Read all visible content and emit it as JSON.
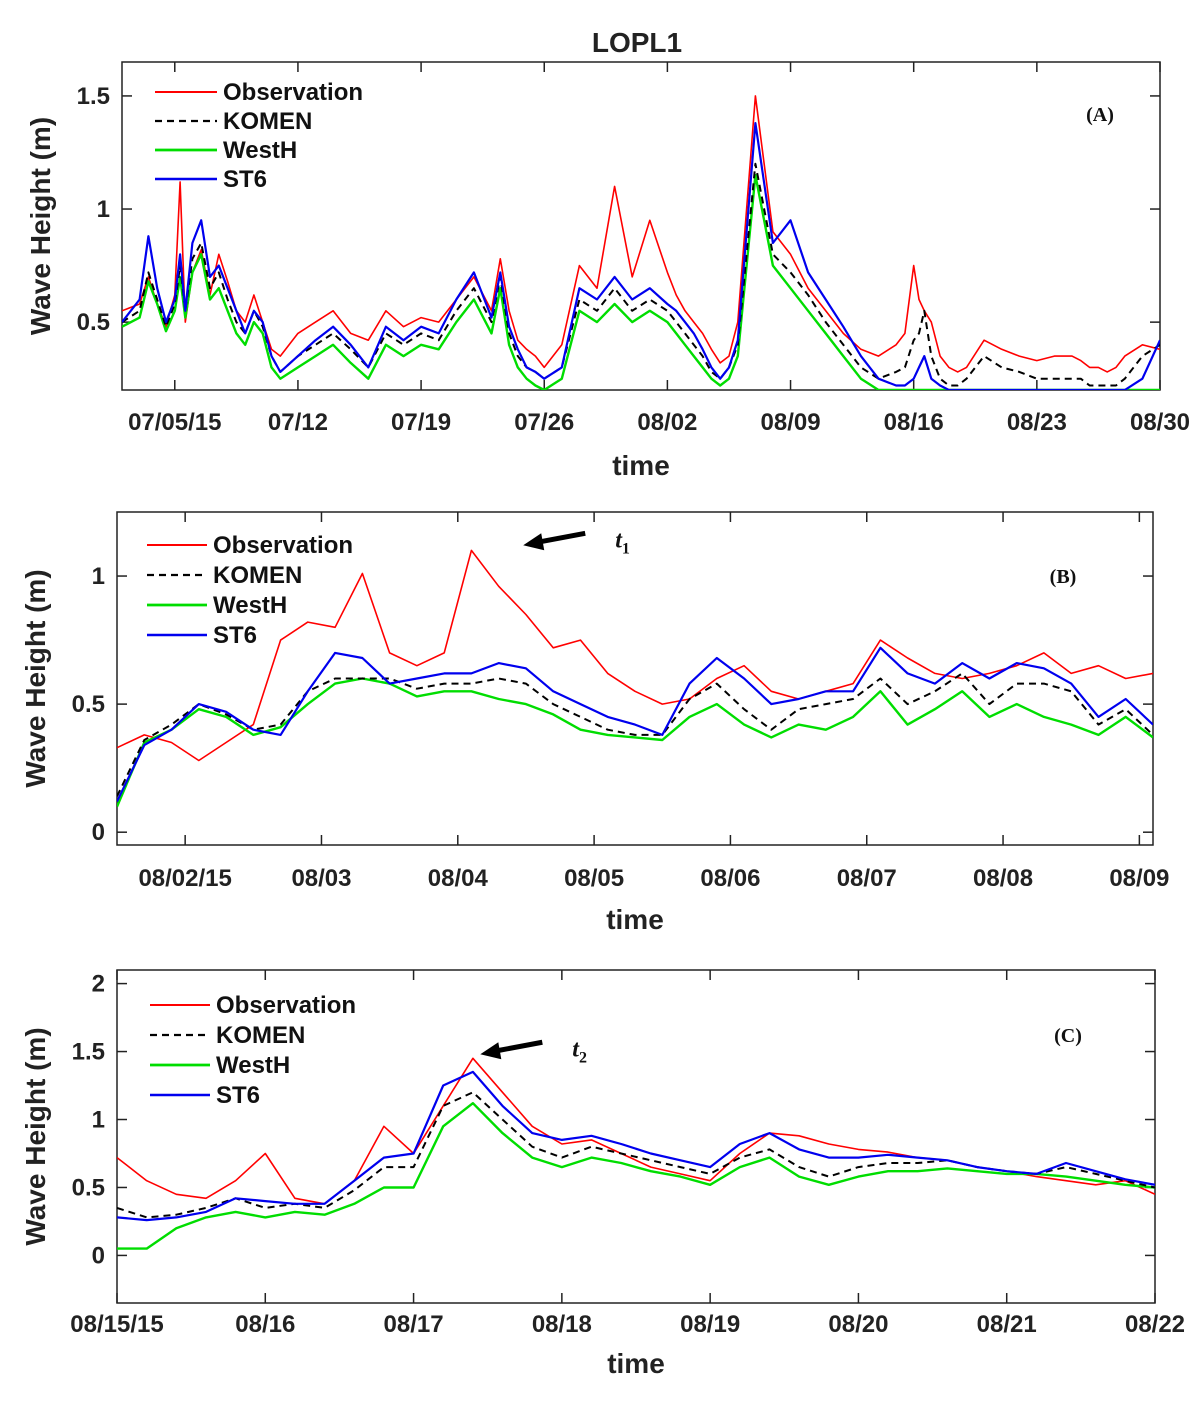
{
  "figure_title": "LOPL1",
  "colors": {
    "observation": "#ff0000",
    "komen": "#000000",
    "westh": "#00dd00",
    "st6": "#0000ee"
  },
  "chart_data": [
    {
      "type": "line",
      "panel": "(A)",
      "title": "LOPL1",
      "xlabel": "time",
      "ylabel": "Wave Height (m)",
      "ylim": [
        0.2,
        1.65
      ],
      "yticks": [
        0.5,
        1,
        1.5
      ],
      "yticklabels": [
        "0.5",
        "1",
        "1.5"
      ],
      "xlim": [
        0,
        59
      ],
      "xtick_positions": [
        3,
        10,
        17,
        24,
        31,
        38,
        45,
        52,
        59
      ],
      "xticklabels": [
        "07/05/15",
        "07/12",
        "07/19",
        "07/26",
        "08/02",
        "08/09",
        "08/16",
        "08/23",
        "08/30"
      ],
      "x": [
        0,
        1,
        1.5,
        2,
        2.5,
        3,
        3.3,
        3.6,
        4,
        4.5,
        5,
        5.5,
        6,
        6.5,
        7,
        7.5,
        8,
        8.5,
        9,
        10,
        11,
        12,
        13,
        14,
        15,
        16,
        17,
        18,
        19,
        20,
        21,
        21.5,
        22,
        22.5,
        23,
        23.5,
        24,
        25,
        26,
        27,
        28,
        29,
        30,
        31,
        31.5,
        32,
        32.5,
        33,
        33.5,
        34,
        34.5,
        35,
        36,
        37,
        38,
        39,
        40,
        41,
        42,
        43,
        44,
        44.5,
        45,
        45.3,
        45.6,
        46,
        46.5,
        47,
        47.5,
        48,
        49,
        50,
        51,
        52,
        53,
        54,
        54.5,
        55,
        55.5,
        56,
        56.5,
        57,
        58,
        59
      ],
      "series": [
        {
          "name": "Observation",
          "values": [
            0.55,
            0.58,
            0.7,
            0.58,
            0.48,
            0.62,
            1.12,
            0.5,
            0.72,
            0.82,
            0.62,
            0.8,
            0.68,
            0.55,
            0.5,
            0.62,
            0.5,
            0.38,
            0.35,
            0.45,
            0.5,
            0.55,
            0.45,
            0.42,
            0.55,
            0.48,
            0.52,
            0.5,
            0.6,
            0.7,
            0.55,
            0.78,
            0.55,
            0.42,
            0.38,
            0.35,
            0.3,
            0.4,
            0.75,
            0.65,
            1.1,
            0.7,
            0.95,
            0.72,
            0.62,
            0.55,
            0.5,
            0.45,
            0.38,
            0.32,
            0.35,
            0.5,
            1.5,
            0.9,
            0.8,
            0.65,
            0.55,
            0.45,
            0.38,
            0.35,
            0.4,
            0.45,
            0.75,
            0.6,
            0.55,
            0.5,
            0.35,
            0.3,
            0.28,
            0.3,
            0.42,
            0.38,
            0.35,
            0.33,
            0.35,
            0.35,
            0.33,
            0.3,
            0.3,
            0.28,
            0.3,
            0.35,
            0.4,
            0.38
          ]
        },
        {
          "name": "KOMEN",
          "values": [
            0.5,
            0.55,
            0.72,
            0.6,
            0.48,
            0.58,
            0.75,
            0.55,
            0.78,
            0.85,
            0.65,
            0.72,
            0.6,
            0.5,
            0.45,
            0.55,
            0.48,
            0.35,
            0.28,
            0.35,
            0.4,
            0.45,
            0.38,
            0.3,
            0.45,
            0.4,
            0.45,
            0.42,
            0.55,
            0.65,
            0.5,
            0.7,
            0.45,
            0.35,
            0.3,
            0.28,
            0.25,
            0.3,
            0.6,
            0.55,
            0.65,
            0.55,
            0.6,
            0.55,
            0.5,
            0.45,
            0.4,
            0.35,
            0.28,
            0.25,
            0.3,
            0.4,
            1.2,
            0.8,
            0.72,
            0.62,
            0.5,
            0.4,
            0.3,
            0.25,
            0.28,
            0.3,
            0.42,
            0.45,
            0.55,
            0.35,
            0.25,
            0.22,
            0.22,
            0.25,
            0.35,
            0.3,
            0.28,
            0.25,
            0.25,
            0.25,
            0.25,
            0.22,
            0.22,
            0.22,
            0.22,
            0.25,
            0.35,
            0.4
          ]
        },
        {
          "name": "WestH",
          "values": [
            0.48,
            0.52,
            0.68,
            0.58,
            0.46,
            0.55,
            0.7,
            0.52,
            0.72,
            0.8,
            0.6,
            0.65,
            0.55,
            0.45,
            0.4,
            0.5,
            0.45,
            0.3,
            0.25,
            0.3,
            0.35,
            0.4,
            0.32,
            0.25,
            0.4,
            0.35,
            0.4,
            0.38,
            0.5,
            0.6,
            0.45,
            0.65,
            0.4,
            0.3,
            0.25,
            0.22,
            0.2,
            0.25,
            0.55,
            0.5,
            0.58,
            0.5,
            0.55,
            0.5,
            0.45,
            0.4,
            0.35,
            0.3,
            0.25,
            0.22,
            0.25,
            0.35,
            1.15,
            0.75,
            0.65,
            0.55,
            0.45,
            0.35,
            0.25,
            0.2,
            0.2,
            0.2,
            0.2,
            0.2,
            0.2,
            0.2,
            0.2,
            0.2,
            0.2,
            0.2,
            0.2,
            0.2,
            0.2,
            0.2,
            0.2,
            0.2,
            0.2,
            0.2,
            0.2,
            0.2,
            0.2,
            0.2,
            0.2,
            0.2
          ]
        },
        {
          "name": "ST6",
          "values": [
            0.5,
            0.6,
            0.88,
            0.65,
            0.5,
            0.6,
            0.8,
            0.55,
            0.85,
            0.95,
            0.7,
            0.75,
            0.65,
            0.55,
            0.45,
            0.55,
            0.5,
            0.35,
            0.28,
            0.35,
            0.42,
            0.48,
            0.4,
            0.3,
            0.48,
            0.42,
            0.48,
            0.45,
            0.6,
            0.72,
            0.52,
            0.72,
            0.48,
            0.38,
            0.3,
            0.28,
            0.25,
            0.3,
            0.65,
            0.6,
            0.7,
            0.6,
            0.65,
            0.58,
            0.55,
            0.5,
            0.45,
            0.38,
            0.3,
            0.25,
            0.3,
            0.42,
            1.38,
            0.85,
            0.95,
            0.72,
            0.6,
            0.48,
            0.35,
            0.25,
            0.22,
            0.22,
            0.25,
            0.3,
            0.35,
            0.25,
            0.22,
            0.2,
            0.2,
            0.2,
            0.2,
            0.2,
            0.2,
            0.2,
            0.2,
            0.2,
            0.2,
            0.2,
            0.2,
            0.2,
            0.2,
            0.2,
            0.25,
            0.42
          ]
        }
      ]
    },
    {
      "type": "line",
      "panel": "(B)",
      "xlabel": "time",
      "ylabel": "Wave Height (m)",
      "ylim": [
        -0.05,
        1.25
      ],
      "yticks": [
        0,
        0.5,
        1
      ],
      "yticklabels": [
        "0",
        "0.5",
        "1"
      ],
      "xlim": [
        0,
        7.6
      ],
      "xtick_positions": [
        0.5,
        1.5,
        2.5,
        3.5,
        4.5,
        5.5,
        6.5,
        7.5
      ],
      "xticklabels": [
        "08/02/15",
        "08/03",
        "08/04",
        "08/05",
        "08/06",
        "08/07",
        "08/08",
        "08/09"
      ],
      "annotation": {
        "text": "t1",
        "x": 2.98,
        "y": 1.12
      },
      "x": [
        0,
        0.2,
        0.4,
        0.6,
        0.8,
        1,
        1.2,
        1.4,
        1.6,
        1.8,
        2,
        2.2,
        2.4,
        2.6,
        2.8,
        3,
        3.2,
        3.4,
        3.6,
        3.8,
        4,
        4.2,
        4.4,
        4.6,
        4.8,
        5,
        5.2,
        5.4,
        5.6,
        5.8,
        6,
        6.2,
        6.4,
        6.6,
        6.8,
        7,
        7.2,
        7.4,
        7.6
      ],
      "series": [
        {
          "name": "Observation",
          "values": [
            0.33,
            0.38,
            0.35,
            0.28,
            0.35,
            0.42,
            0.75,
            0.82,
            0.8,
            1.01,
            0.7,
            0.65,
            0.7,
            1.1,
            0.96,
            0.85,
            0.72,
            0.75,
            0.62,
            0.55,
            0.5,
            0.52,
            0.6,
            0.65,
            0.55,
            0.52,
            0.55,
            0.58,
            0.75,
            0.68,
            0.62,
            0.6,
            0.62,
            0.65,
            0.7,
            0.62,
            0.65,
            0.6,
            0.62
          ]
        },
        {
          "name": "KOMEN",
          "values": [
            0.14,
            0.36,
            0.42,
            0.5,
            0.46,
            0.4,
            0.42,
            0.55,
            0.6,
            0.6,
            0.6,
            0.56,
            0.58,
            0.58,
            0.6,
            0.58,
            0.5,
            0.45,
            0.4,
            0.38,
            0.38,
            0.52,
            0.58,
            0.48,
            0.4,
            0.48,
            0.5,
            0.52,
            0.6,
            0.5,
            0.55,
            0.62,
            0.5,
            0.58,
            0.58,
            0.55,
            0.42,
            0.48,
            0.38
          ]
        },
        {
          "name": "WestH",
          "values": [
            0.1,
            0.35,
            0.4,
            0.48,
            0.45,
            0.38,
            0.41,
            0.5,
            0.58,
            0.6,
            0.58,
            0.53,
            0.55,
            0.55,
            0.52,
            0.5,
            0.46,
            0.4,
            0.38,
            0.37,
            0.36,
            0.45,
            0.5,
            0.42,
            0.37,
            0.42,
            0.4,
            0.45,
            0.55,
            0.42,
            0.48,
            0.55,
            0.45,
            0.5,
            0.45,
            0.42,
            0.38,
            0.45,
            0.37
          ]
        },
        {
          "name": "ST6",
          "values": [
            0.12,
            0.34,
            0.4,
            0.5,
            0.47,
            0.4,
            0.38,
            0.55,
            0.7,
            0.68,
            0.58,
            0.6,
            0.62,
            0.62,
            0.66,
            0.64,
            0.55,
            0.5,
            0.45,
            0.42,
            0.38,
            0.58,
            0.68,
            0.6,
            0.5,
            0.52,
            0.55,
            0.55,
            0.72,
            0.62,
            0.58,
            0.66,
            0.6,
            0.66,
            0.64,
            0.58,
            0.45,
            0.52,
            0.42
          ]
        }
      ]
    },
    {
      "type": "line",
      "panel": "(C)",
      "xlabel": "time",
      "ylabel": "Wave Height (m)",
      "ylim": [
        -0.35,
        2.1
      ],
      "yticks": [
        0,
        0.5,
        1,
        1.5,
        2
      ],
      "yticklabels": [
        "0",
        "0.5",
        "1",
        "1.5",
        "2"
      ],
      "xlim": [
        0,
        7
      ],
      "xtick_positions": [
        0,
        1,
        2,
        3,
        4,
        5,
        6,
        7
      ],
      "xticklabels": [
        "08/15/15",
        "08/16",
        "08/17",
        "08/18",
        "08/19",
        "08/20",
        "08/21",
        "08/22"
      ],
      "annotation": {
        "text": "t2",
        "x": 2.45,
        "y": 1.48
      },
      "x": [
        0,
        0.2,
        0.4,
        0.6,
        0.8,
        1,
        1.2,
        1.4,
        1.6,
        1.8,
        2,
        2.2,
        2.4,
        2.6,
        2.8,
        3,
        3.2,
        3.4,
        3.6,
        3.8,
        4,
        4.2,
        4.4,
        4.6,
        4.8,
        5,
        5.2,
        5.4,
        5.6,
        5.8,
        6,
        6.2,
        6.4,
        6.6,
        6.8,
        7
      ],
      "series": [
        {
          "name": "Observation",
          "values": [
            0.72,
            0.55,
            0.45,
            0.42,
            0.55,
            0.75,
            0.42,
            0.38,
            0.55,
            0.95,
            0.75,
            1.1,
            1.45,
            1.2,
            0.95,
            0.82,
            0.85,
            0.75,
            0.65,
            0.6,
            0.55,
            0.75,
            0.9,
            0.88,
            0.82,
            0.78,
            0.76,
            0.72,
            0.7,
            0.65,
            0.62,
            0.58,
            0.55,
            0.52,
            0.55,
            0.45
          ]
        },
        {
          "name": "KOMEN",
          "values": [
            0.35,
            0.28,
            0.3,
            0.35,
            0.42,
            0.35,
            0.38,
            0.35,
            0.48,
            0.65,
            0.65,
            1.1,
            1.2,
            1.0,
            0.8,
            0.72,
            0.8,
            0.75,
            0.7,
            0.65,
            0.6,
            0.72,
            0.78,
            0.65,
            0.58,
            0.65,
            0.68,
            0.68,
            0.7,
            0.65,
            0.62,
            0.6,
            0.65,
            0.6,
            0.55,
            0.5
          ]
        },
        {
          "name": "WestH",
          "values": [
            0.05,
            0.05,
            0.2,
            0.28,
            0.32,
            0.28,
            0.32,
            0.3,
            0.38,
            0.5,
            0.5,
            0.95,
            1.12,
            0.9,
            0.72,
            0.65,
            0.72,
            0.68,
            0.62,
            0.58,
            0.52,
            0.65,
            0.72,
            0.58,
            0.52,
            0.58,
            0.62,
            0.62,
            0.64,
            0.62,
            0.6,
            0.6,
            0.58,
            0.55,
            0.52,
            0.5
          ]
        },
        {
          "name": "ST6",
          "values": [
            0.28,
            0.26,
            0.28,
            0.32,
            0.42,
            0.4,
            0.38,
            0.38,
            0.55,
            0.72,
            0.75,
            1.25,
            1.35,
            1.1,
            0.9,
            0.85,
            0.88,
            0.82,
            0.75,
            0.7,
            0.65,
            0.82,
            0.9,
            0.78,
            0.72,
            0.72,
            0.74,
            0.72,
            0.7,
            0.65,
            0.62,
            0.6,
            0.68,
            0.62,
            0.56,
            0.52
          ]
        }
      ]
    }
  ]
}
